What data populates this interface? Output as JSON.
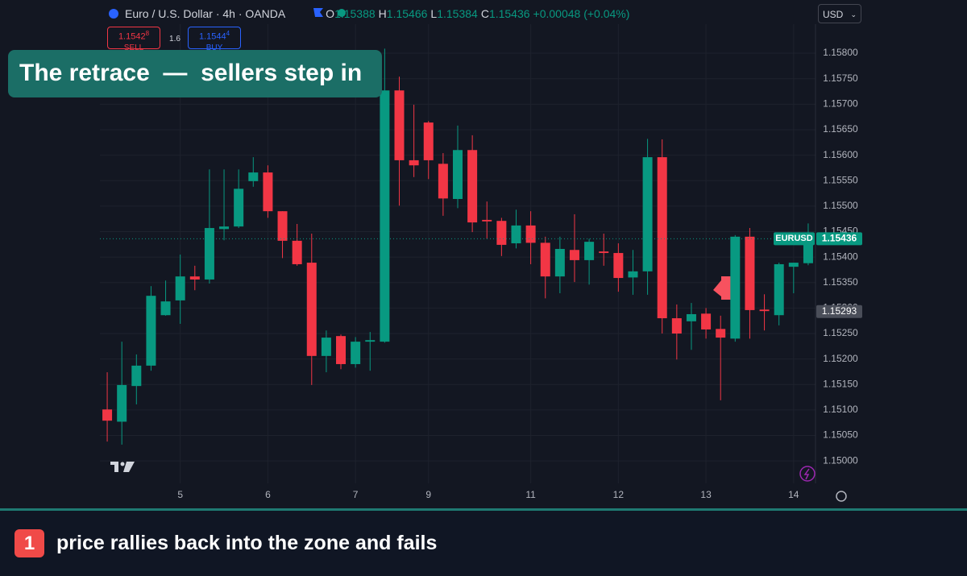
{
  "chart_data": {
    "type": "candlestick",
    "categories": [
      null,
      null,
      null,
      null,
      null,
      "5",
      null,
      null,
      null,
      null,
      null,
      "6",
      null,
      null,
      null,
      null,
      null,
      "7",
      null,
      null,
      null,
      null,
      "9",
      null,
      null,
      null,
      null,
      null,
      null,
      "11",
      null,
      null,
      null,
      null,
      null,
      "12",
      null,
      null,
      null,
      null,
      null,
      "13",
      null,
      null,
      null,
      null,
      null,
      "14",
      null
    ],
    "open": [
      1.15101,
      1.15077,
      1.15147,
      1.15187,
      1.15286,
      1.15315,
      1.15362,
      1.15356,
      1.15455,
      1.1546,
      1.15549,
      1.15566,
      1.1549,
      1.15432,
      1.15389,
      1.15206,
      1.15245,
      1.1519,
      1.15234,
      1.15234,
      1.15727,
      1.1559,
      1.15664,
      1.15583,
      1.15514,
      1.1561,
      1.15473,
      1.15471,
      1.15427,
      1.15462,
      1.15428,
      1.15362,
      1.15414,
      1.15394,
      1.15411,
      1.15408,
      1.1536,
      1.15372,
      1.15596,
      1.1528,
      1.15274,
      1.15289,
      1.15259,
      1.1524,
      1.1544,
      1.15297,
      1.15286,
      1.15381,
      1.15388
    ],
    "high": [
      1.15174,
      1.15234,
      1.15209,
      1.15343,
      1.15354,
      1.15405,
      1.15383,
      1.15572,
      1.15572,
      1.15572,
      1.15596,
      1.1558,
      1.1549,
      1.15465,
      1.15446,
      1.15256,
      1.15248,
      1.15243,
      1.15253,
      1.15809,
      1.15754,
      1.15699,
      1.15667,
      1.15604,
      1.15658,
      1.15639,
      1.15509,
      1.15477,
      1.15493,
      1.1549,
      1.1544,
      1.1544,
      1.15484,
      1.15436,
      1.15446,
      1.15427,
      1.15414,
      1.15632,
      1.15631,
      1.15307,
      1.1531,
      1.153,
      1.15285,
      1.15443,
      1.15457,
      1.15327,
      1.15389,
      1.15389,
      1.15466
    ],
    "low": [
      1.15038,
      1.15032,
      1.15111,
      1.15177,
      1.15285,
      1.15269,
      1.15335,
      1.15348,
      1.15433,
      1.15457,
      1.15538,
      1.15477,
      1.15398,
      1.15383,
      1.15149,
      1.15174,
      1.1518,
      1.15183,
      1.15177,
      1.15232,
      1.15501,
      1.15557,
      1.15553,
      1.15481,
      1.15496,
      1.15449,
      1.15436,
      1.15402,
      1.15417,
      1.15386,
      1.15319,
      1.15329,
      1.15351,
      1.15346,
      1.15383,
      1.15332,
      1.15326,
      1.15326,
      1.1525,
      1.15199,
      1.15218,
      1.1524,
      1.15119,
      1.15234,
      1.1524,
      1.15256,
      1.15266,
      1.15329,
      1.15384
    ],
    "close": [
      1.15079,
      1.15149,
      1.15187,
      1.15324,
      1.15313,
      1.15362,
      1.15356,
      1.15457,
      1.1546,
      1.15534,
      1.15566,
      1.1549,
      1.15432,
      1.15386,
      1.15206,
      1.15242,
      1.1519,
      1.15234,
      1.15237,
      1.15727,
      1.1559,
      1.1558,
      1.1559,
      1.15515,
      1.1561,
      1.15468,
      1.1547,
      1.15424,
      1.15462,
      1.15428,
      1.15362,
      1.15416,
      1.15394,
      1.1543,
      1.15408,
      1.15359,
      1.15372,
      1.15596,
      1.1528,
      1.1525,
      1.15288,
      1.15258,
      1.15242,
      1.1544,
      1.15296,
      1.15294,
      1.15386,
      1.15389,
      1.15436
    ],
    "up_color": "#089981",
    "down_color": "#f23645",
    "ylim": [
      1.14956,
      1.15857
    ],
    "yticks": [
      {
        "value": 1.15,
        "label": "1.15000"
      },
      {
        "value": 1.1505,
        "label": "1.15050"
      },
      {
        "value": 1.151,
        "label": "1.15100"
      },
      {
        "value": 1.1515,
        "label": "1.15150"
      },
      {
        "value": 1.152,
        "label": "1.15200"
      },
      {
        "value": 1.1525,
        "label": "1.15250"
      },
      {
        "value": 1.153,
        "label": "1.15300"
      },
      {
        "value": 1.1535,
        "label": "1.15350"
      },
      {
        "value": 1.154,
        "label": "1.15400"
      },
      {
        "value": 1.1545,
        "label": "1.15450"
      },
      {
        "value": 1.155,
        "label": "1.15500"
      },
      {
        "value": 1.1555,
        "label": "1.15550"
      },
      {
        "value": 1.156,
        "label": "1.15600"
      },
      {
        "value": 1.1565,
        "label": "1.15650"
      },
      {
        "value": 1.157,
        "label": "1.15700"
      },
      {
        "value": 1.1575,
        "label": "1.15750"
      },
      {
        "value": 1.158,
        "label": "1.15800"
      }
    ],
    "grid": true,
    "symbol": "EURUSD",
    "last_price": {
      "value": 1.15436,
      "label": "1.15436"
    },
    "marker_price": {
      "value": 1.15293,
      "label": "1.15293"
    }
  },
  "header": {
    "title": "Euro / U.S. Dollar · 4h · OANDA",
    "o": "O",
    "o_value": "1.15388",
    "h": "H",
    "h_value": "1.15466",
    "l": "L",
    "l_value": "1.15384",
    "c": "C",
    "c_value": "1.15436",
    "change": "+0.00048 (+0.04%)",
    "currency": "USD"
  },
  "trade": {
    "sell_price": "1.1542",
    "sell_pip": "8",
    "sell": "SELL",
    "spread": "1.6",
    "buy_price": "1.1544",
    "buy_pip": "4",
    "buy": "BUY"
  },
  "overlay": {
    "title": "The retrace  —  sellers step in"
  },
  "footer": {
    "step": "1",
    "text": "price rallies back into the zone and fails"
  }
}
